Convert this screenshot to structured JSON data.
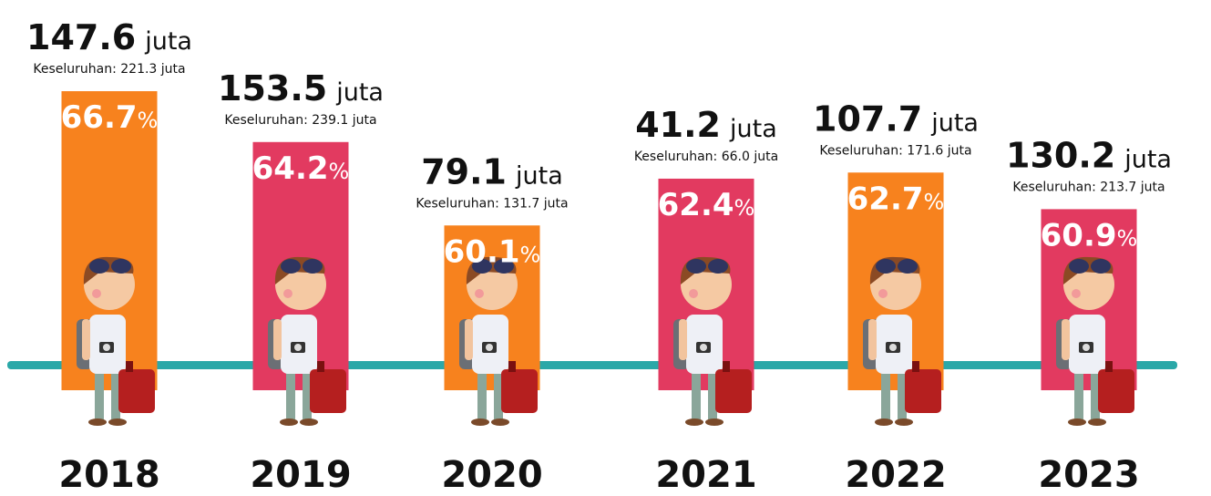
{
  "chart_data": {
    "type": "bar",
    "categories": [
      "2018",
      "2019",
      "2020",
      "2021",
      "2022",
      "2023"
    ],
    "values": [
      66.7,
      64.2,
      60.1,
      62.4,
      62.7,
      60.9
    ],
    "unit": "%",
    "colors": [
      "#f7821e",
      "#e23a60",
      "#f7821e",
      "#e23a60",
      "#f7821e",
      "#e23a60"
    ],
    "travelers": [
      147.6,
      153.5,
      79.1,
      41.2,
      107.7,
      130.2
    ],
    "travelers_unit": "juta",
    "total_labels": [
      "Keseluruhan: 221.3 juta",
      "Keseluruhan: 239.1 juta",
      "Keseluruhan: 131.7 juta",
      "Keseluruhan: 66.0 juta",
      "Keseluruhan: 171.6 juta",
      "Keseluruhan: 213.7 juta"
    ],
    "ylim": [
      52,
      68
    ]
  }
}
